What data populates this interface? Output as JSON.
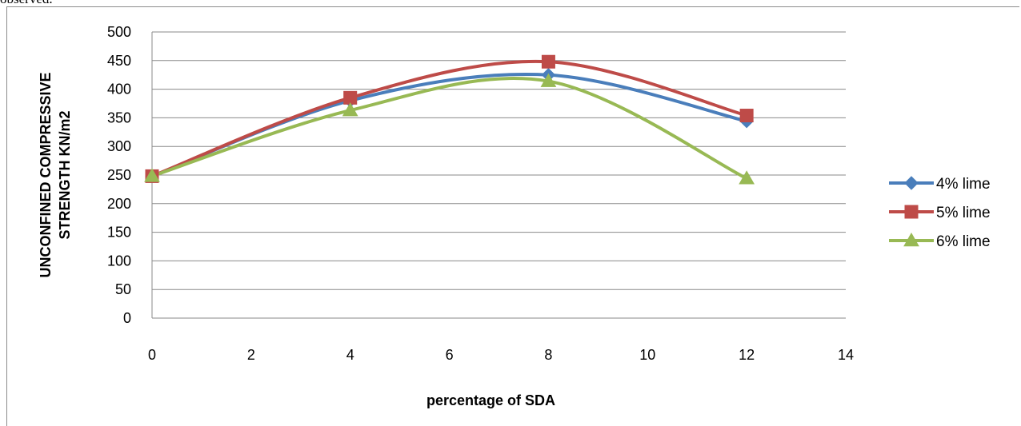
{
  "caption_fragment": "observed.",
  "chart_data": {
    "type": "line",
    "title": "",
    "xlabel": "percentage of SDA",
    "ylabel_lines": [
      "UNCONFINED COMPRESSIVE",
      "STRENGTH KN/m2"
    ],
    "xlim": [
      0,
      14
    ],
    "ylim": [
      0,
      500
    ],
    "xticks": [
      0,
      2,
      4,
      6,
      8,
      10,
      12,
      14
    ],
    "yticks": [
      0,
      50,
      100,
      150,
      200,
      250,
      300,
      350,
      400,
      450,
      500
    ],
    "grid": "horizontal",
    "smooth": true,
    "legend_position": "right",
    "series": [
      {
        "name": "4% lime",
        "color": "#4a7ebb",
        "marker": "diamond",
        "x": [
          0,
          4,
          8,
          12
        ],
        "y": [
          248,
          380,
          425,
          344
        ]
      },
      {
        "name": "5% lime",
        "color": "#be4b48",
        "marker": "square",
        "x": [
          0,
          4,
          8,
          12
        ],
        "y": [
          248,
          385,
          448,
          354
        ]
      },
      {
        "name": "6% lime",
        "color": "#98b954",
        "marker": "triangle",
        "x": [
          0,
          4,
          8,
          12
        ],
        "y": [
          248,
          363,
          414,
          244
        ]
      }
    ]
  }
}
